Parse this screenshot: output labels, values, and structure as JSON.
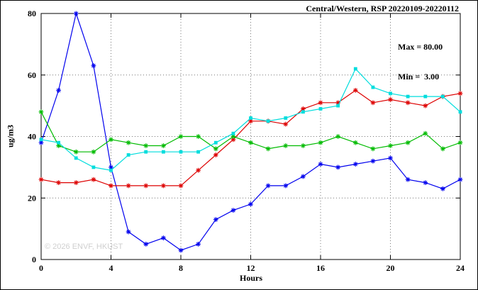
{
  "watermark": "© 2026 ENVF, HKUST",
  "annotations": {
    "max_label": "Max = 80.00",
    "min_label": "Min =  3.00"
  },
  "chart_data": {
    "type": "line",
    "title": "Central/Western, RSP 20220109-20220112",
    "xlabel": "Hours",
    "ylabel": "ug/m3",
    "xlim": [
      0,
      24
    ],
    "ylim": [
      0,
      80
    ],
    "xticks": [
      0,
      4,
      8,
      12,
      16,
      20,
      24
    ],
    "yticks": [
      0,
      20,
      40,
      60,
      80
    ],
    "grid": true,
    "legend": "none",
    "stats": {
      "max": 80.0,
      "min": 3.0
    },
    "x": [
      0,
      1,
      2,
      3,
      4,
      5,
      6,
      7,
      8,
      9,
      10,
      11,
      12,
      13,
      14,
      15,
      16,
      17,
      18,
      19,
      20,
      21,
      22,
      23,
      24
    ],
    "series": [
      {
        "name": "blue",
        "color": "#0000ee",
        "marker": "asterisk",
        "values": [
          38,
          55,
          80,
          63,
          30,
          9,
          5,
          7,
          3,
          5,
          13,
          16,
          18,
          24,
          24,
          27,
          31,
          30,
          31,
          32,
          33,
          26,
          25,
          23,
          26
        ]
      },
      {
        "name": "red",
        "color": "#dd0000",
        "marker": "asterisk",
        "values": [
          26,
          25,
          25,
          26,
          24,
          24,
          24,
          24,
          24,
          29,
          34,
          39,
          45,
          45,
          44,
          49,
          51,
          51,
          55,
          51,
          52,
          51,
          50,
          53,
          54
        ]
      },
      {
        "name": "green",
        "color": "#00bb00",
        "marker": "asterisk",
        "values": [
          48,
          37,
          35,
          35,
          39,
          38,
          37,
          37,
          40,
          40,
          36,
          40,
          38,
          36,
          37,
          37,
          38,
          40,
          38,
          36,
          37,
          38,
          41,
          36,
          38
        ]
      },
      {
        "name": "cyan",
        "color": "#00dddd",
        "marker": "square",
        "values": [
          39,
          38,
          33,
          30,
          29,
          34,
          35,
          35,
          35,
          35,
          38,
          41,
          46,
          45,
          46,
          48,
          49,
          50,
          62,
          56,
          54,
          53,
          53,
          53,
          48
        ]
      }
    ]
  }
}
